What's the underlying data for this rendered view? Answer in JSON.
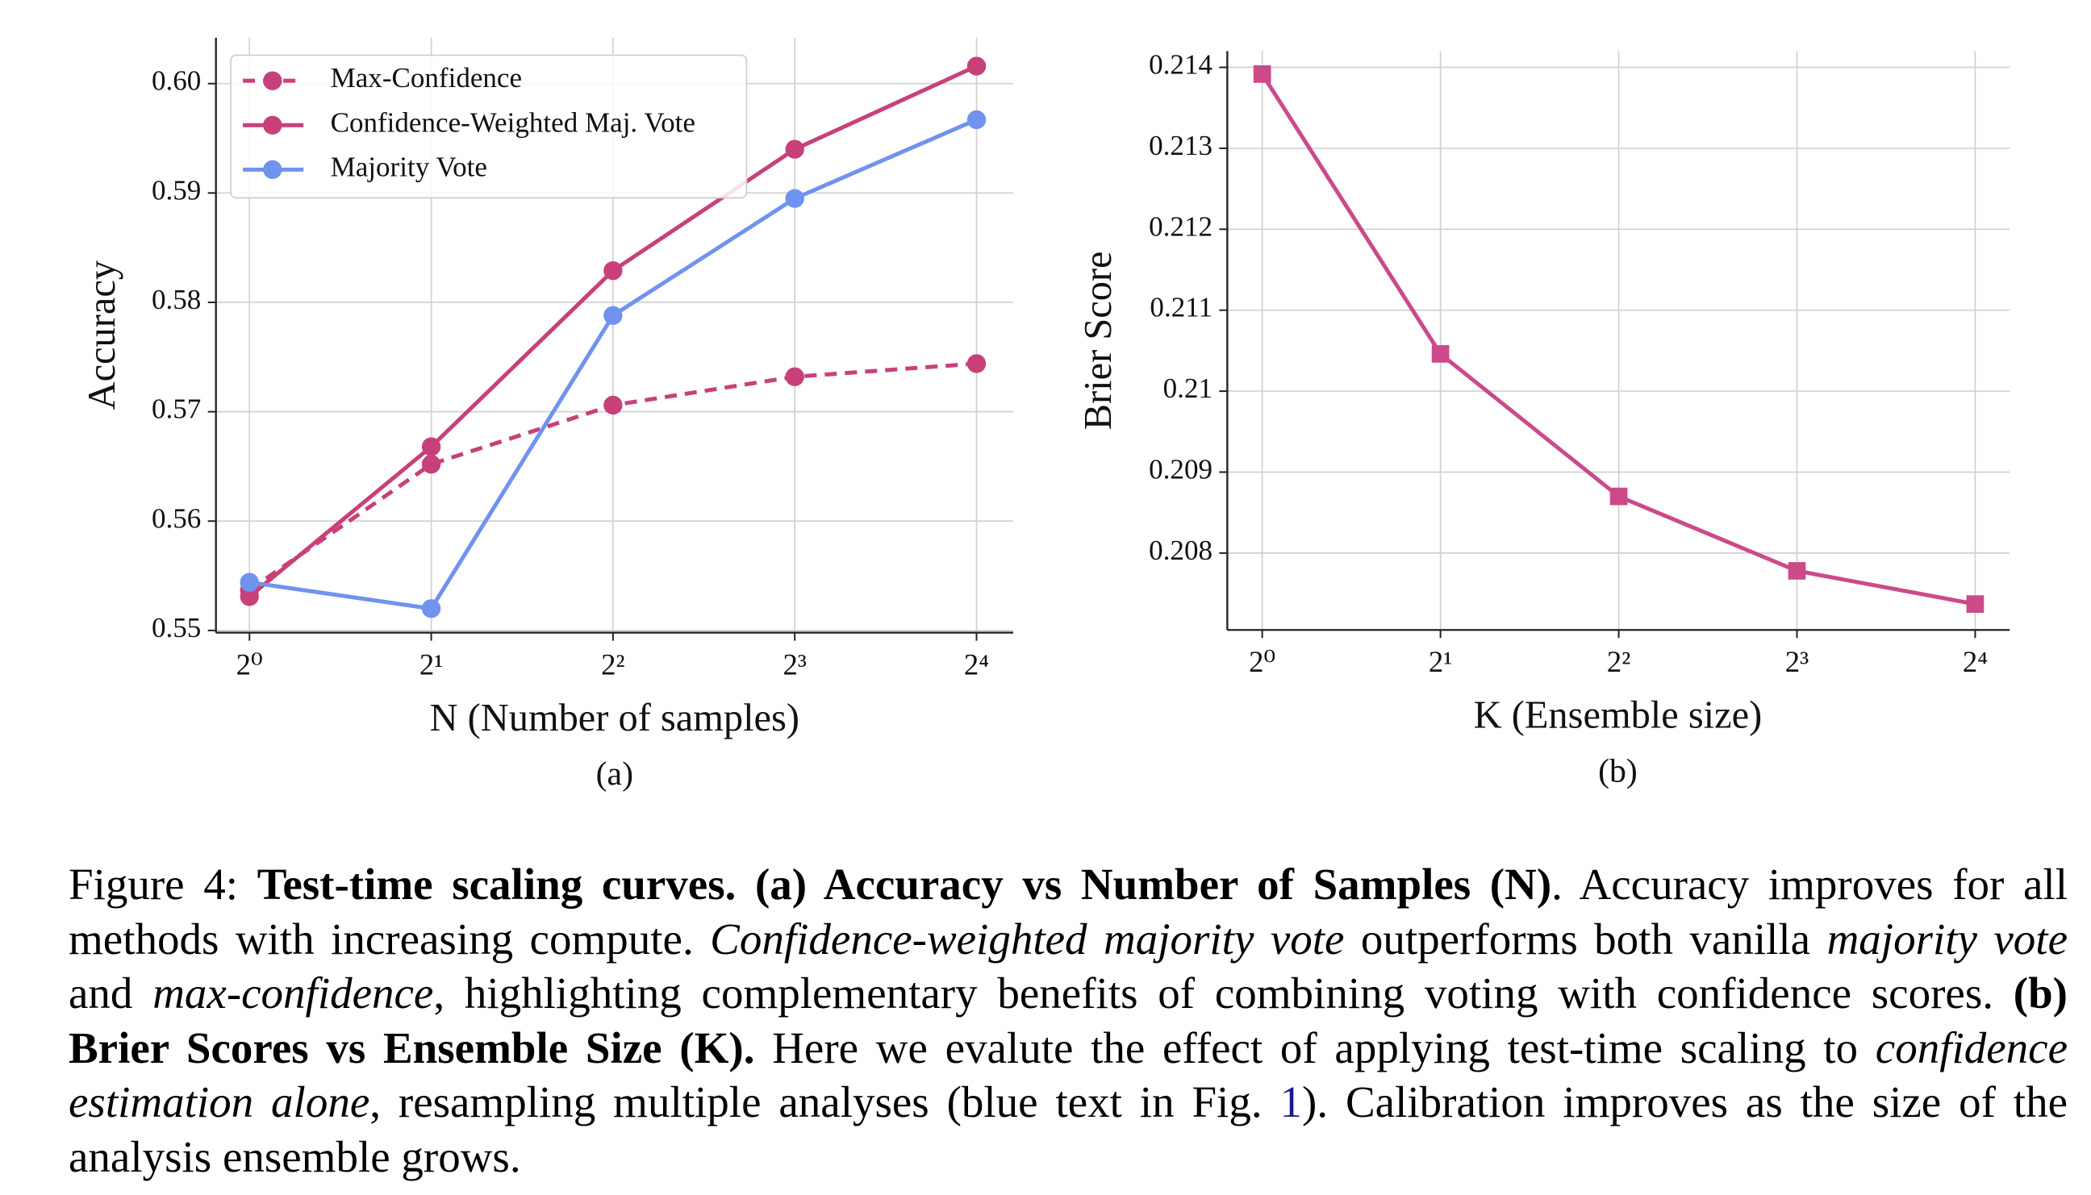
{
  "chart_data": [
    {
      "type": "line",
      "x_scale": "log2",
      "xlabel": "N (Number of samples)",
      "ylabel": "Accuracy",
      "panel_label": "(a)",
      "x": [
        1,
        2,
        4,
        8,
        16
      ],
      "series": [
        {
          "name": "Max-Confidence",
          "color": "#c8407a",
          "linestyle": "dashed",
          "marker": "circle",
          "values": [
            0.5537,
            0.5652,
            0.5706,
            0.5732,
            0.5744
          ]
        },
        {
          "name": "Confidence-Weighted Maj. Vote",
          "color": "#c8407a",
          "linestyle": "solid",
          "marker": "circle",
          "values": [
            0.5531,
            0.5668,
            0.5829,
            0.594,
            0.6016
          ]
        },
        {
          "name": "Majority Vote",
          "color": "#6f93ee",
          "linestyle": "solid",
          "marker": "circle",
          "values": [
            0.5544,
            0.552,
            0.5788,
            0.5895,
            0.5967
          ]
        }
      ],
      "xlim": [
        0.88,
        18.4
      ],
      "ylim": [
        0.5498,
        0.6042
      ],
      "xticks": [
        {
          "value": 1,
          "label": "2⁰"
        },
        {
          "value": 2,
          "label": "2¹"
        },
        {
          "value": 4,
          "label": "2²"
        },
        {
          "value": 8,
          "label": "2³"
        },
        {
          "value": 16,
          "label": "2⁴"
        }
      ],
      "yticks": [
        0.55,
        0.56,
        0.57,
        0.58,
        0.59,
        {
          "value": 0.6,
          "label": "0.60"
        }
      ],
      "grid": true,
      "legend": "upper-left"
    },
    {
      "type": "line",
      "x_scale": "log2",
      "xlabel": "K (Ensemble size)",
      "ylabel": "Brier Score",
      "panel_label": "(b)",
      "x": [
        1,
        2,
        4,
        8,
        16
      ],
      "values": [
        0.213917,
        0.21046,
        0.2087,
        0.20778,
        0.20737
      ],
      "color": "#cc4a8a",
      "marker": "square",
      "xlim": [
        0.873,
        18.3
      ],
      "ylim": [
        0.20705,
        0.2142
      ],
      "xticks": [
        {
          "value": 1,
          "label": "2⁰"
        },
        {
          "value": 2,
          "label": "2¹"
        },
        {
          "value": 4,
          "label": "2²"
        },
        {
          "value": 8,
          "label": "2³"
        },
        {
          "value": 16,
          "label": "2⁴"
        }
      ],
      "yticks": [
        0.208,
        0.209,
        0.21,
        0.211,
        0.212,
        0.213,
        0.214
      ],
      "grid": true
    }
  ],
  "caption": [
    {
      "text": "Figure 4: ",
      "style": "normal"
    },
    {
      "text": "Test-time scaling curves. (a) Accuracy vs Number of Samples (N)",
      "style": "bold"
    },
    {
      "text": ". Accuracy improves for all methods with increasing compute. ",
      "style": "normal"
    },
    {
      "text": "Confidence-weighted majority vote",
      "style": "italic"
    },
    {
      "text": " outperforms both vanilla ",
      "style": "normal"
    },
    {
      "text": "majority vote",
      "style": "italic"
    },
    {
      "text": " and ",
      "style": "normal"
    },
    {
      "text": "max-confidence",
      "style": "italic"
    },
    {
      "text": ", highlighting complementary benefits of combining voting with confidence scores. ",
      "style": "normal"
    },
    {
      "text": "(b) Brier Scores vs Ensemble Size (K).",
      "style": "bold"
    },
    {
      "text": " Here we evalute the effect of applying test-time scaling to ",
      "style": "normal"
    },
    {
      "text": "confidence estimation alone",
      "style": "italic"
    },
    {
      "text": ", resampling multiple analyses (blue text in Fig. ",
      "style": "normal"
    },
    {
      "text": "1",
      "style": "link"
    },
    {
      "text": "). Calibration improves as the size of the analysis ensemble grows.",
      "style": "normal"
    }
  ]
}
